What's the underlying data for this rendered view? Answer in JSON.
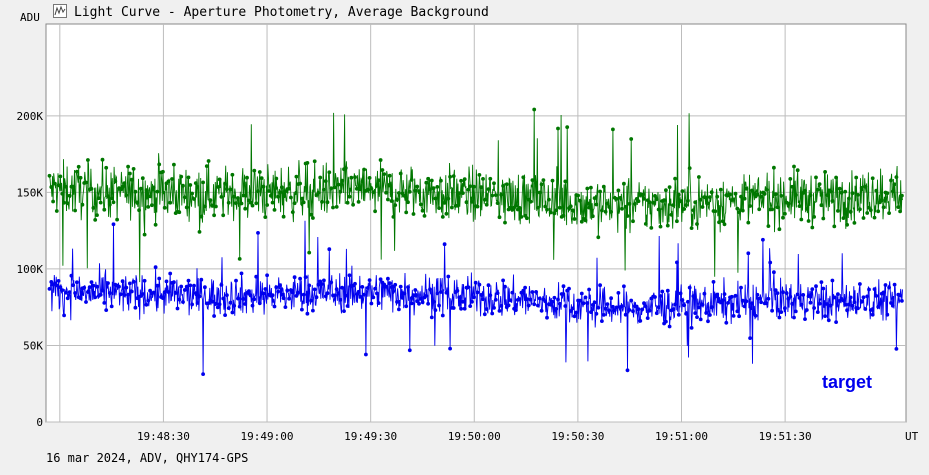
{
  "window": {
    "title": "Light Curve - Aperture Photometry, Average Background",
    "icon": "light-curve-app-icon"
  },
  "footer": {
    "info": "16 mar 2024, ADV, QHY174-GPS"
  },
  "chart_data": {
    "type": "line",
    "title": "",
    "ylabel": "ADU",
    "xlabel": "UT",
    "ylim": [
      0,
      260000
    ],
    "y_ticks": [
      {
        "value": 0,
        "label": "0"
      },
      {
        "value": 50000,
        "label": "50K"
      },
      {
        "value": 100000,
        "label": "100K"
      },
      {
        "value": 150000,
        "label": "150K"
      },
      {
        "value": 200000,
        "label": "200K"
      }
    ],
    "x_range": [
      "19:47:56",
      "19:52:05"
    ],
    "x_ticks": [
      "19:48:30",
      "19:49:00",
      "19:49:30",
      "19:50:00",
      "19:50:30",
      "19:51:00",
      "19:51:30"
    ],
    "grid": true,
    "legend": {
      "placement": "bottom-right",
      "entries": [
        "target"
      ]
    },
    "series": [
      {
        "name": "target",
        "color": "#0000ee",
        "note_visible": "noisy series, ~35K..120K",
        "x": [
          "19:48:00",
          "19:48:15",
          "19:48:30",
          "19:48:45",
          "19:49:00",
          "19:49:15",
          "19:49:30",
          "19:49:45",
          "19:50:00",
          "19:50:15",
          "19:50:30",
          "19:50:45",
          "19:51:00",
          "19:51:15",
          "19:51:30",
          "19:51:45",
          "19:52:00"
        ],
        "values": [
          85000,
          84000,
          83000,
          82000,
          83000,
          84000,
          85000,
          84000,
          82000,
          80000,
          76000,
          74000,
          76000,
          78000,
          80000,
          78000,
          80000
        ],
        "spread": 22000
      },
      {
        "color": "#007700",
        "x": [
          "19:48:00",
          "19:48:15",
          "19:48:30",
          "19:48:45",
          "19:49:00",
          "19:49:15",
          "19:49:30",
          "19:49:45",
          "19:50:00",
          "19:50:15",
          "19:50:30",
          "19:50:45",
          "19:51:00",
          "19:51:15",
          "19:51:30",
          "19:51:45",
          "19:52:00"
        ],
        "values": [
          152000,
          150000,
          150000,
          149000,
          150000,
          151000,
          152000,
          150000,
          148000,
          146000,
          143000,
          141000,
          143000,
          145000,
          147000,
          146000,
          150000
        ],
        "spread": 30000
      }
    ]
  }
}
